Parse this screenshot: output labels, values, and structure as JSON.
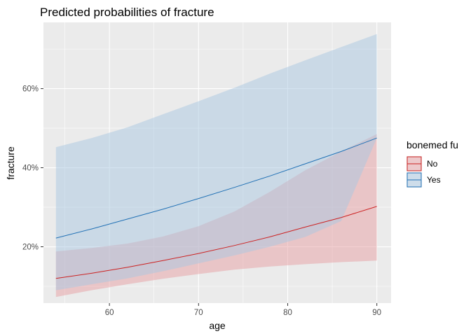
{
  "chart_data": {
    "type": "line",
    "title": "Predicted probabilities of fracture",
    "xlabel": "age",
    "ylabel": "fracture",
    "xlim": [
      52.6,
      91.6
    ],
    "ylim": [
      0.0575,
      0.7675
    ],
    "x_ticks": [
      60,
      70,
      80,
      90
    ],
    "x_tick_labels": [
      "60",
      "70",
      "80",
      "90"
    ],
    "y_ticks": [
      0.2,
      0.4,
      0.6
    ],
    "y_tick_labels": [
      "20%",
      "40%",
      "60%"
    ],
    "grid": true,
    "legend": {
      "title": "bonemed fu",
      "position": "right"
    },
    "x": [
      54,
      58,
      62,
      66,
      70,
      74,
      78,
      82,
      86,
      90
    ],
    "series": [
      {
        "name": "No",
        "color": "#cc2222",
        "fill": "#e7a0a3",
        "values": [
          0.12,
          0.133,
          0.148,
          0.165,
          0.183,
          0.203,
          0.225,
          0.25,
          0.274,
          0.302
        ],
        "lower": [
          0.073,
          0.09,
          0.105,
          0.119,
          0.131,
          0.142,
          0.15,
          0.156,
          0.161,
          0.165
        ],
        "upper": [
          0.188,
          0.197,
          0.208,
          0.226,
          0.252,
          0.289,
          0.339,
          0.394,
          0.441,
          0.485
        ]
      },
      {
        "name": "Yes",
        "color": "#2171b5",
        "fill": "#a9c8e2",
        "values": [
          0.222,
          0.245,
          0.27,
          0.295,
          0.322,
          0.35,
          0.379,
          0.41,
          0.441,
          0.475
        ],
        "lower": [
          0.09,
          0.105,
          0.12,
          0.138,
          0.158,
          0.178,
          0.2,
          0.225,
          0.265,
          0.475
        ],
        "upper": [
          0.452,
          0.475,
          0.502,
          0.535,
          0.568,
          0.602,
          0.638,
          0.672,
          0.705,
          0.738
        ]
      }
    ]
  }
}
